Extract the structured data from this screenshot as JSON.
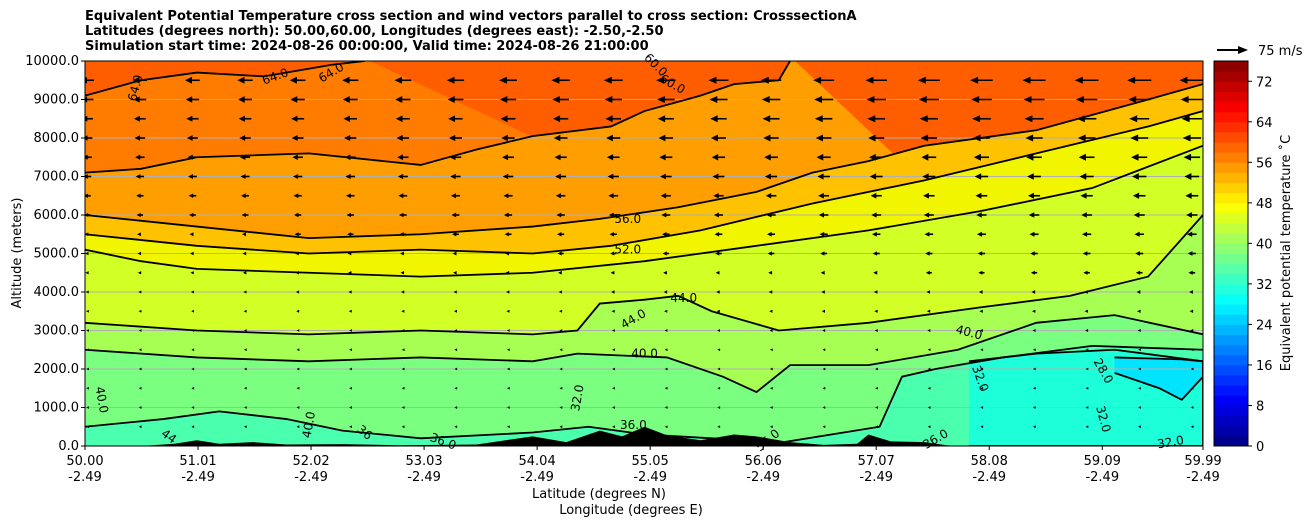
{
  "titles": [
    "Equivalent Potential Temperature cross section and wind vectors parallel to cross section: CrosssectionA",
    "Latitudes (degrees north): 50.00,60.00, Longitudes (degrees east): -2.50,-2.50",
    "Simulation start time: 2024-08-26 00:00:00, Valid time: 2024-08-26 21:00:00"
  ],
  "chart_data": {
    "type": "heatmap",
    "subtype": "filled contour with contour lines and wind vectors",
    "ylabel": "Altitude (meters)",
    "xlabel_line1": "Latitude (degrees N)",
    "xlabel_line2": "Longitude (degrees E)",
    "xlim": [
      50.0,
      59.99
    ],
    "ylim": [
      0,
      10000
    ],
    "grid": "horizontal",
    "x_ticks": [
      {
        "lat": "50.00",
        "lon": "-2.49",
        "value": 50.0
      },
      {
        "lat": "51.01",
        "lon": "-2.49",
        "value": 51.01
      },
      {
        "lat": "52.02",
        "lon": "-2.49",
        "value": 52.02
      },
      {
        "lat": "53.03",
        "lon": "-2.49",
        "value": 53.03
      },
      {
        "lat": "54.04",
        "lon": "-2.49",
        "value": 54.04
      },
      {
        "lat": "55.05",
        "lon": "-2.49",
        "value": 55.05
      },
      {
        "lat": "56.06",
        "lon": "-2.49",
        "value": 56.06
      },
      {
        "lat": "57.07",
        "lon": "-2.49",
        "value": 57.07
      },
      {
        "lat": "58.08",
        "lon": "-2.49",
        "value": 58.08
      },
      {
        "lat": "59.09",
        "lon": "-2.49",
        "value": 59.09
      },
      {
        "lat": "59.99",
        "lon": "-2.49",
        "value": 59.99
      }
    ],
    "y_ticks": [
      "0.0",
      "1000.0",
      "2000.0",
      "3000.0",
      "4000.0",
      "5000.0",
      "6000.0",
      "7000.0",
      "8000.0",
      "9000.0",
      "10000.0"
    ],
    "colorbar": {
      "label": "Equivalent potential temperature $^\\circ$C",
      "label_display": "Equivalent potential temperature ˚C",
      "range": [
        0,
        76
      ],
      "step": 2,
      "ticks": [
        "0",
        "8",
        "16",
        "24",
        "32",
        "40",
        "48",
        "56",
        "64",
        "72"
      ]
    },
    "wind_key": {
      "label": "75 m/s",
      "reference_speed": 75,
      "direction": "westward",
      "max_speed_approx": 60
    },
    "contours": [
      {
        "level": 64,
        "fill_below": "#ff7c00",
        "points": [
          [
            50,
            9100
          ],
          [
            50.5,
            9500
          ],
          [
            51,
            9700
          ],
          [
            51.6,
            9600
          ],
          [
            52.2,
            9900
          ],
          [
            52.5,
            10000
          ]
        ]
      },
      {
        "level": 60,
        "fill_below": "#ff9e00",
        "points": [
          [
            50,
            7100
          ],
          [
            50.5,
            7200
          ],
          [
            51,
            7500
          ],
          [
            52,
            7600
          ],
          [
            53,
            7300
          ],
          [
            53.5,
            7700
          ],
          [
            54,
            8050
          ],
          [
            54.7,
            8300
          ],
          [
            55,
            8700
          ],
          [
            55.5,
            9100
          ],
          [
            55.8,
            9400
          ],
          [
            56.2,
            9500
          ],
          [
            56.3,
            10000
          ]
        ]
      },
      {
        "level": 56,
        "fill_below": "#ffc200",
        "points": [
          [
            50,
            6000
          ],
          [
            51,
            5700
          ],
          [
            52,
            5400
          ],
          [
            53,
            5500
          ],
          [
            54,
            5700
          ],
          [
            54.6,
            5900
          ],
          [
            55.3,
            6200
          ],
          [
            56,
            6600
          ],
          [
            56.5,
            7100
          ],
          [
            57,
            7400
          ],
          [
            57.5,
            7800
          ],
          [
            58.5,
            8200
          ],
          [
            59.5,
            9000
          ],
          [
            59.99,
            9400
          ]
        ]
      },
      {
        "level": 52,
        "fill_below": "#f2f500",
        "points": [
          [
            50,
            5500
          ],
          [
            51,
            5200
          ],
          [
            52,
            5000
          ],
          [
            53,
            5100
          ],
          [
            54,
            5000
          ],
          [
            54.7,
            5200
          ],
          [
            55.5,
            5600
          ],
          [
            56.5,
            6300
          ],
          [
            57.5,
            6900
          ],
          [
            58.5,
            7600
          ],
          [
            59.5,
            8300
          ],
          [
            59.99,
            8700
          ]
        ]
      },
      {
        "level": 48,
        "fill_below": "#d2ff26",
        "points": [
          [
            50,
            5100
          ],
          [
            50.5,
            4800
          ],
          [
            51,
            4600
          ],
          [
            52,
            4500
          ],
          [
            53,
            4400
          ],
          [
            54,
            4500
          ],
          [
            55,
            4800
          ],
          [
            56,
            5200
          ],
          [
            57,
            5600
          ],
          [
            58,
            6100
          ],
          [
            59,
            6700
          ],
          [
            59.99,
            7800
          ]
        ]
      },
      {
        "level": 44,
        "fill_below": "#a6ff52",
        "points": [
          [
            50,
            3200
          ],
          [
            51,
            3000
          ],
          [
            52,
            2900
          ],
          [
            53,
            3000
          ],
          [
            54,
            2900
          ],
          [
            54.4,
            3000
          ],
          [
            54.6,
            3700
          ],
          [
            55,
            3800
          ],
          [
            55.3,
            3900
          ],
          [
            55.6,
            3500
          ],
          [
            56.2,
            3000
          ],
          [
            57,
            3200
          ],
          [
            58,
            3600
          ],
          [
            58.8,
            3900
          ],
          [
            59.5,
            4400
          ],
          [
            59.99,
            6000
          ]
        ]
      },
      {
        "level": 40,
        "fill_below": "#7aff80",
        "points": [
          [
            50,
            2500
          ],
          [
            51,
            2300
          ],
          [
            52,
            2200
          ],
          [
            53,
            2300
          ],
          [
            54,
            2200
          ],
          [
            54.4,
            2400
          ],
          [
            55.2,
            2300
          ],
          [
            55.7,
            1800
          ],
          [
            56,
            1400
          ],
          [
            56.3,
            2100
          ],
          [
            57,
            2100
          ],
          [
            57.8,
            2500
          ],
          [
            58.5,
            3200
          ],
          [
            59.2,
            3400
          ],
          [
            59.99,
            2900
          ]
        ]
      },
      {
        "level": 36,
        "fill_below": "#4affae",
        "points": [
          [
            50,
            500
          ],
          [
            50.7,
            700
          ],
          [
            51.2,
            900
          ],
          [
            51.8,
            700
          ],
          [
            52.3,
            400
          ],
          [
            53,
            200
          ],
          [
            54,
            350
          ],
          [
            54.5,
            500
          ],
          [
            55,
            300
          ],
          [
            55.6,
            200
          ],
          [
            56.2,
            80
          ],
          [
            57.1,
            500
          ],
          [
            57.3,
            1800
          ],
          [
            57.6,
            2000
          ],
          [
            58.2,
            2300
          ],
          [
            59,
            2600
          ],
          [
            59.99,
            2500
          ]
        ]
      },
      {
        "level": 32,
        "fill_below": "#1cffd8",
        "points": [
          [
            57.9,
            2200
          ],
          [
            58.5,
            2400
          ],
          [
            59.2,
            2500
          ],
          [
            59.99,
            2200
          ],
          [
            59.99,
            0
          ],
          [
            57.9,
            0
          ]
        ]
      },
      {
        "level": 28,
        "fill_below": "#00e4ff",
        "points": [
          [
            59.2,
            2300
          ],
          [
            59.8,
            2250
          ],
          [
            59.99,
            2200
          ],
          [
            59.99,
            1800
          ],
          [
            59.8,
            1200
          ],
          [
            59.6,
            1500
          ],
          [
            59.2,
            1900
          ]
        ]
      }
    ],
    "contour_labels": [
      {
        "text": "64.0",
        "lat": 50.45,
        "alt": 9300,
        "rot": -75
      },
      {
        "text": "64.0",
        "lat": 51.7,
        "alt": 9600,
        "rot": -20
      },
      {
        "text": "64.0",
        "lat": 52.2,
        "alt": 9700,
        "rot": -30
      },
      {
        "text": "60.0",
        "lat": 55.1,
        "alt": 9900,
        "rot": 45
      },
      {
        "text": "60.0",
        "lat": 55.25,
        "alt": 9400,
        "rot": 30
      },
      {
        "text": "56.0",
        "lat": 54.85,
        "alt": 5900,
        "rot": 0
      },
      {
        "text": "52.0",
        "lat": 54.85,
        "alt": 5100,
        "rot": 0
      },
      {
        "text": "44.0",
        "lat": 55.35,
        "alt": 3850,
        "rot": 0
      },
      {
        "text": "44.0",
        "lat": 54.9,
        "alt": 3300,
        "rot": -30
      },
      {
        "text": "40.0",
        "lat": 55.0,
        "alt": 2400,
        "rot": 0
      },
      {
        "text": "40.0",
        "lat": 57.9,
        "alt": 2950,
        "rot": 15
      },
      {
        "text": "32.0",
        "lat": 54.4,
        "alt": 1250,
        "rot": -80
      },
      {
        "text": "36.0",
        "lat": 54.9,
        "alt": 550,
        "rot": 0
      },
      {
        "text": "32.0",
        "lat": 58.0,
        "alt": 1750,
        "rot": 70
      },
      {
        "text": "28.0",
        "lat": 59.1,
        "alt": 1950,
        "rot": 60
      },
      {
        "text": "32.0",
        "lat": 59.1,
        "alt": 700,
        "rot": 75
      },
      {
        "text": "32.0",
        "lat": 59.7,
        "alt": 100,
        "rot": -10
      },
      {
        "text": "36.0",
        "lat": 57.6,
        "alt": 180,
        "rot": -30
      },
      {
        "text": "40.0",
        "lat": 50.15,
        "alt": 1200,
        "rot": 80
      },
      {
        "text": "40.0",
        "lat": 52.0,
        "alt": 550,
        "rot": -80
      },
      {
        "text": "44",
        "lat": 50.75,
        "alt": 250,
        "rot": 35
      },
      {
        "text": "36",
        "lat": 52.5,
        "alt": 350,
        "rot": 40
      },
      {
        "text": "36.0",
        "lat": 53.2,
        "alt": 120,
        "rot": 20
      },
      {
        "text": "56.0",
        "lat": 56.1,
        "alt": 150,
        "rot": -40
      }
    ],
    "terrain": [
      [
        50.5,
        0
      ],
      [
        50.8,
        60
      ],
      [
        51,
        150
      ],
      [
        51.2,
        60
      ],
      [
        51.5,
        100
      ],
      [
        51.8,
        40
      ],
      [
        52.3,
        50
      ],
      [
        52.8,
        20
      ],
      [
        53.5,
        40
      ],
      [
        54.0,
        250
      ],
      [
        54.3,
        100
      ],
      [
        54.6,
        400
      ],
      [
        54.8,
        250
      ],
      [
        55.0,
        500
      ],
      [
        55.2,
        280
      ],
      [
        55.5,
        150
      ],
      [
        55.8,
        300
      ],
      [
        56.0,
        250
      ],
      [
        56.3,
        100
      ],
      [
        56.6,
        30
      ],
      [
        56.9,
        60
      ],
      [
        57.0,
        300
      ],
      [
        57.2,
        120
      ],
      [
        57.5,
        100
      ],
      [
        57.7,
        20
      ],
      [
        57.8,
        0
      ]
    ]
  }
}
